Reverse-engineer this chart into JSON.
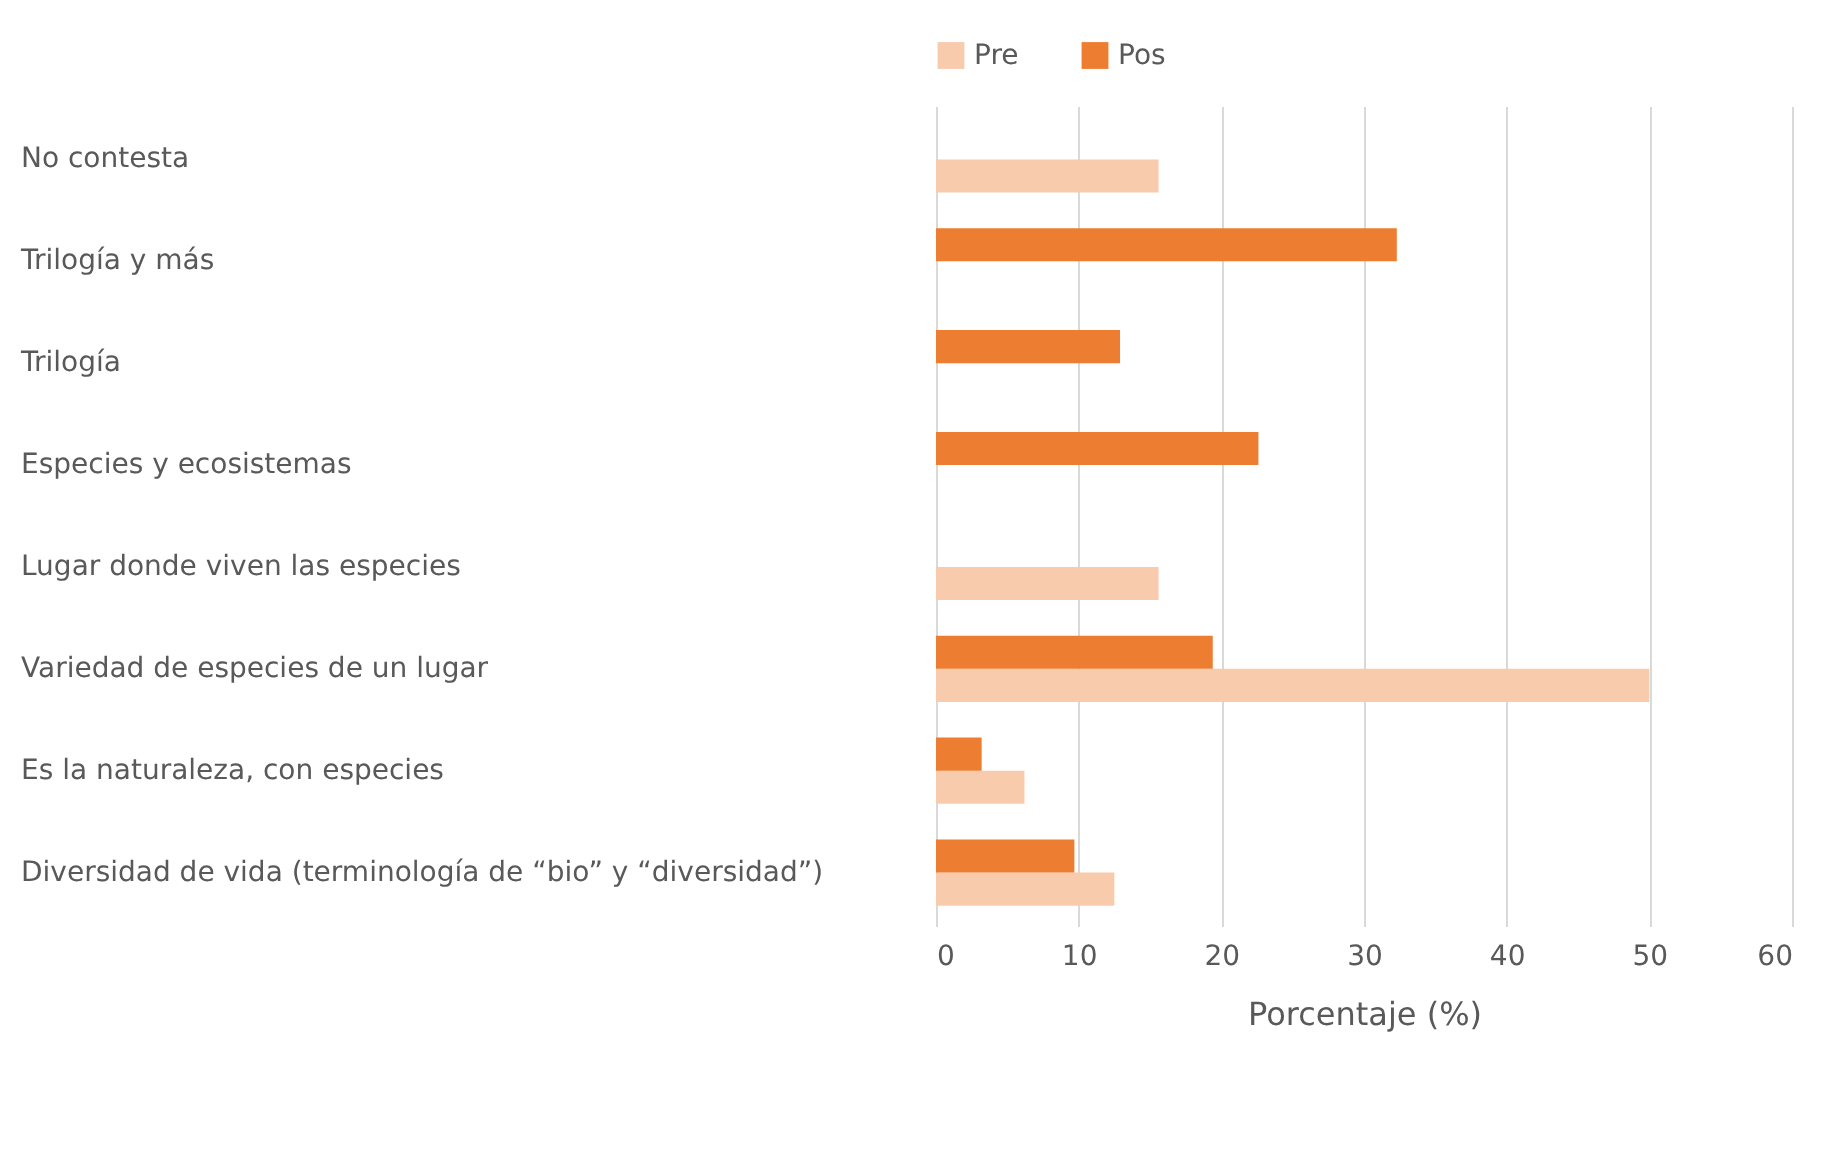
{
  "chart_data": {
    "type": "bar",
    "orientation": "horizontal",
    "xlabel": "Porcentaje (%)",
    "categories": [
      "No contesta",
      "Trilogía y más",
      "Trilogía",
      "Especies y ecosistemas",
      "Lugar donde viven las especies",
      "Variedad de especies de un lugar",
      "Es la naturaleza, con especies",
      "Diversidad de vida (terminología de “bio” y “diversidad”)"
    ],
    "series": [
      {
        "name": "Pre",
        "color": "#f8cbad",
        "values": [
          15.6,
          0,
          0,
          0,
          15.6,
          50,
          6.2,
          12.5
        ]
      },
      {
        "name": "Pos",
        "color": "#ed7d31",
        "values": [
          0,
          32.3,
          12.9,
          22.6,
          0,
          19.4,
          3.2,
          9.7
        ]
      }
    ],
    "xlim": [
      0,
      60
    ],
    "xticks": [
      0,
      10,
      20,
      30,
      40,
      50,
      60
    ],
    "grid": "x",
    "legend": "top"
  }
}
